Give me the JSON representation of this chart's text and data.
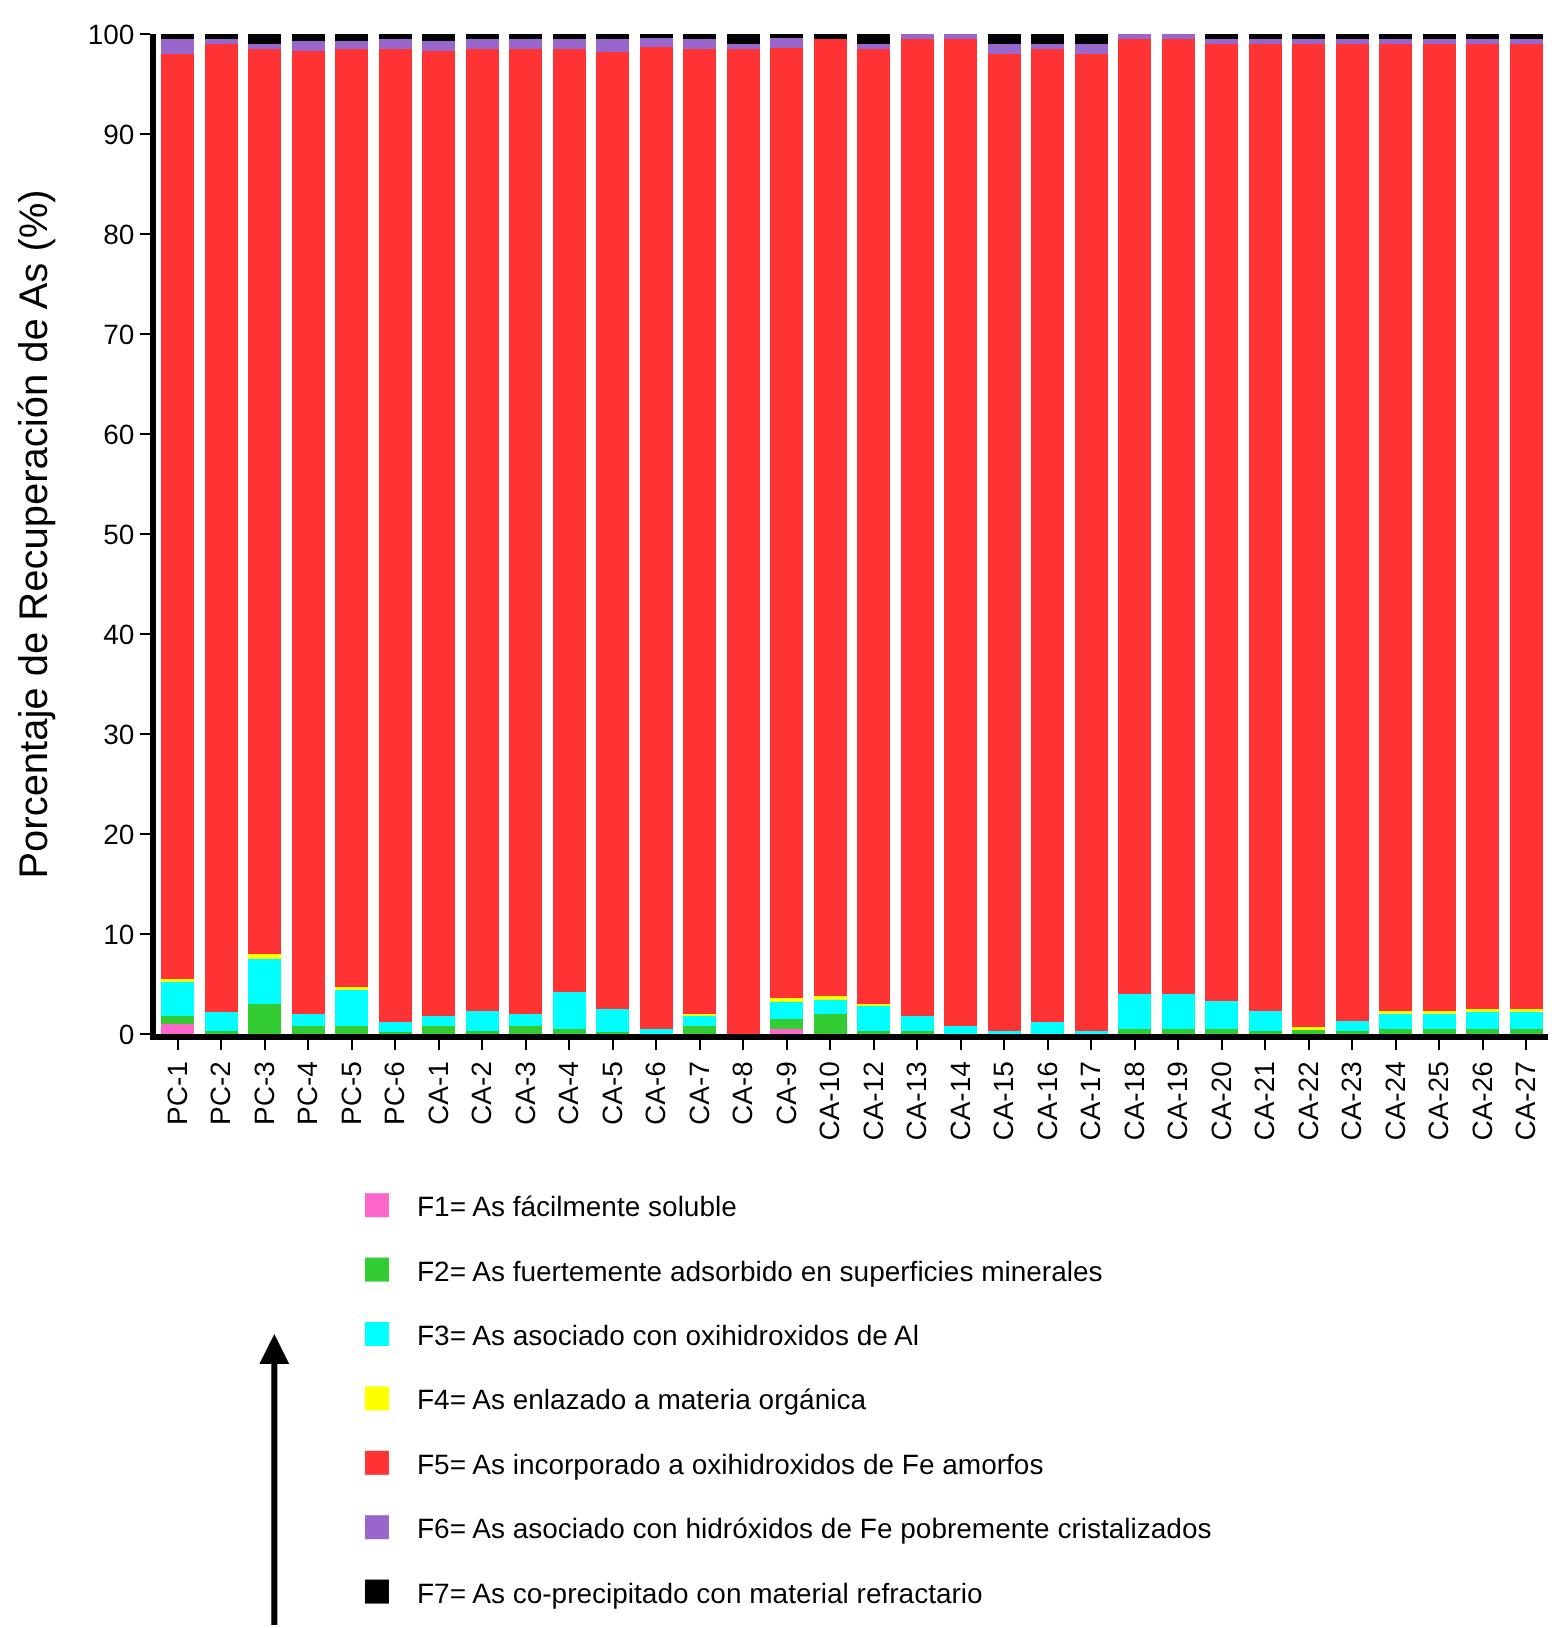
{
  "chart_data": {
    "type": "bar",
    "stacked": true,
    "ylabel": "Porcentaje de Recuperación de As (%)",
    "categories": [
      "PC-1",
      "PC-2",
      "PC-3",
      "PC-4",
      "PC-5",
      "PC-6",
      "CA-1",
      "CA-2",
      "CA-3",
      "CA-4",
      "CA-5",
      "CA-6",
      "CA-7",
      "CA-8",
      "CA-9",
      "CA-10",
      "CA-12",
      "CA-13",
      "CA-14",
      "CA-15",
      "CA-16",
      "CA-17",
      "CA-18",
      "CA-19",
      "CA-20",
      "CA-21",
      "CA-22",
      "CA-23",
      "CA-24",
      "CA-25",
      "CA-26",
      "CA-27"
    ],
    "ylim": [
      0,
      100
    ],
    "yticks": [
      0,
      10,
      20,
      30,
      40,
      50,
      60,
      70,
      80,
      90,
      100
    ],
    "grid": false,
    "legend": "bottom",
    "series": [
      {
        "name": "F1= As fácilmente soluble",
        "color": "#ff66cc",
        "values": [
          1,
          0,
          0,
          0,
          0,
          0,
          0,
          0,
          0,
          0,
          0,
          0,
          0,
          0,
          0.5,
          0,
          0,
          0,
          0,
          0,
          0,
          0,
          0,
          0,
          0,
          0,
          0,
          0,
          0,
          0,
          0,
          0
        ]
      },
      {
        "name": "F2= As fuertemente adsorbido en superficies minerales",
        "color": "#33cc33",
        "values": [
          0.8,
          0.3,
          3,
          0.8,
          0.8,
          0.2,
          0.8,
          0.3,
          0.8,
          0.5,
          0.2,
          0,
          0.8,
          0,
          1,
          2,
          0.3,
          0.3,
          0,
          0,
          0,
          0,
          0.5,
          0.5,
          0.5,
          0.3,
          0.5,
          0.3,
          0.5,
          0.5,
          0.5,
          0.5
        ]
      },
      {
        "name": "F3= As asociado con oxihidroxidos de Al",
        "color": "#00ffff",
        "values": [
          3.5,
          1.9,
          4.5,
          1.2,
          3.7,
          1,
          1,
          2,
          1.2,
          3.7,
          2.3,
          0.5,
          1,
          0,
          1.8,
          1.5,
          2.5,
          1.5,
          0.8,
          0.3,
          1.2,
          0.3,
          3.5,
          3.5,
          2.8,
          2,
          0,
          1,
          1.6,
          1.6,
          1.8,
          1.8
        ]
      },
      {
        "name": "F4= As enlazado a materia orgánica",
        "color": "#ffff00",
        "values": [
          0.2,
          0,
          0.5,
          0,
          0.2,
          0,
          0,
          0,
          0,
          0,
          0,
          0,
          0.2,
          0,
          0.3,
          0.3,
          0.2,
          0,
          0,
          0,
          0,
          0,
          0,
          0,
          0,
          0,
          0.2,
          0,
          0.2,
          0.2,
          0.2,
          0.2
        ]
      },
      {
        "name": "F5= As incorporado a oxihidroxidos de Fe amorfos",
        "color": "#ff3333",
        "values": [
          92.5,
          96.8,
          90.5,
          96.3,
          93.8,
          97.3,
          96.5,
          96.2,
          96.5,
          94.3,
          95.7,
          98.2,
          96.5,
          98.5,
          95,
          95.7,
          95.5,
          97.7,
          98.7,
          97.7,
          97.3,
          97.7,
          95.5,
          95.5,
          95.7,
          96.7,
          98.3,
          97.7,
          96.7,
          96.7,
          96.5,
          96.5
        ]
      },
      {
        "name": "F6= As asociado con hidróxidos de Fe pobremente cristalizados",
        "color": "#9966cc",
        "values": [
          1.5,
          0.5,
          0.5,
          1,
          0.8,
          1,
          1,
          1,
          1,
          1,
          1.3,
          1,
          1,
          0.5,
          1,
          0,
          0.5,
          0.5,
          0.5,
          1,
          0.5,
          1,
          0.5,
          0.5,
          0.5,
          0.5,
          0.5,
          0.5,
          0.5,
          0.5,
          0.5,
          0.5
        ]
      },
      {
        "name": "F7= As co-precipitado con material refractario",
        "color": "#000000",
        "values": [
          0.5,
          0.5,
          1,
          0.7,
          0.7,
          0.5,
          0.7,
          0.5,
          0.5,
          0.5,
          0.5,
          0.3,
          0.5,
          1,
          0.4,
          0.5,
          1,
          0,
          0,
          1,
          1,
          1,
          0,
          0,
          0.5,
          0.5,
          0.5,
          0.5,
          0.5,
          0.5,
          0.5,
          0.5
        ]
      }
    ]
  }
}
